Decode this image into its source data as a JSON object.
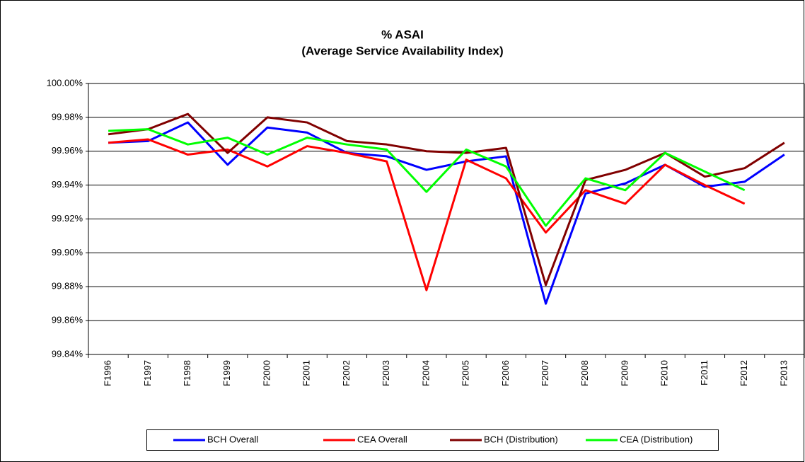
{
  "chart_data": {
    "type": "line",
    "title": "% ASAI",
    "subtitle": "(Average Service Availability Index)",
    "categories": [
      "F1996",
      "F1997",
      "F1998",
      "F1999",
      "F2000",
      "F2001",
      "F2002",
      "F2003",
      "F2004",
      "F2005",
      "F2006",
      "F2007",
      "F2008",
      "F2009",
      "F2010",
      "F2011",
      "F2012",
      "F2013"
    ],
    "series": [
      {
        "name": "BCH Overall",
        "color": "#0000ff",
        "values": [
          99.965,
          99.966,
          99.977,
          99.952,
          99.974,
          99.971,
          99.959,
          99.957,
          99.949,
          99.954,
          99.957,
          99.87,
          99.935,
          99.941,
          99.952,
          99.939,
          99.942,
          99.958
        ]
      },
      {
        "name": "CEA Overall",
        "color": "#ff0000",
        "values": [
          99.965,
          99.967,
          99.958,
          99.961,
          99.951,
          99.963,
          99.959,
          99.954,
          99.878,
          99.955,
          99.944,
          99.912,
          99.937,
          99.929,
          99.952,
          99.94,
          99.929,
          null
        ]
      },
      {
        "name": "BCH (Distribution)",
        "color": "#800000",
        "values": [
          99.97,
          99.973,
          99.982,
          99.959,
          99.98,
          99.977,
          99.966,
          99.964,
          99.96,
          99.959,
          99.962,
          99.881,
          99.943,
          99.949,
          99.959,
          99.945,
          99.95,
          99.965
        ]
      },
      {
        "name": "CEA (Distribution)",
        "color": "#00ff00",
        "values": [
          99.972,
          99.973,
          99.964,
          99.968,
          99.958,
          99.968,
          99.964,
          99.961,
          99.936,
          99.961,
          99.951,
          99.916,
          99.944,
          99.937,
          99.959,
          99.948,
          99.937,
          null
        ]
      }
    ],
    "ylim": [
      99.84,
      100.0
    ],
    "yticks": [
      {
        "value": 99.84,
        "label": "99.84%"
      },
      {
        "value": 99.86,
        "label": "99.86%"
      },
      {
        "value": 99.88,
        "label": "99.88%"
      },
      {
        "value": 99.9,
        "label": "99.90%"
      },
      {
        "value": 99.92,
        "label": "99.92%"
      },
      {
        "value": 99.94,
        "label": "99.94%"
      },
      {
        "value": 99.96,
        "label": "99.96%"
      },
      {
        "value": 99.98,
        "label": "99.98%"
      },
      {
        "value": 100.0,
        "label": "100.00%"
      }
    ],
    "grid": true,
    "legend": "bottom"
  }
}
